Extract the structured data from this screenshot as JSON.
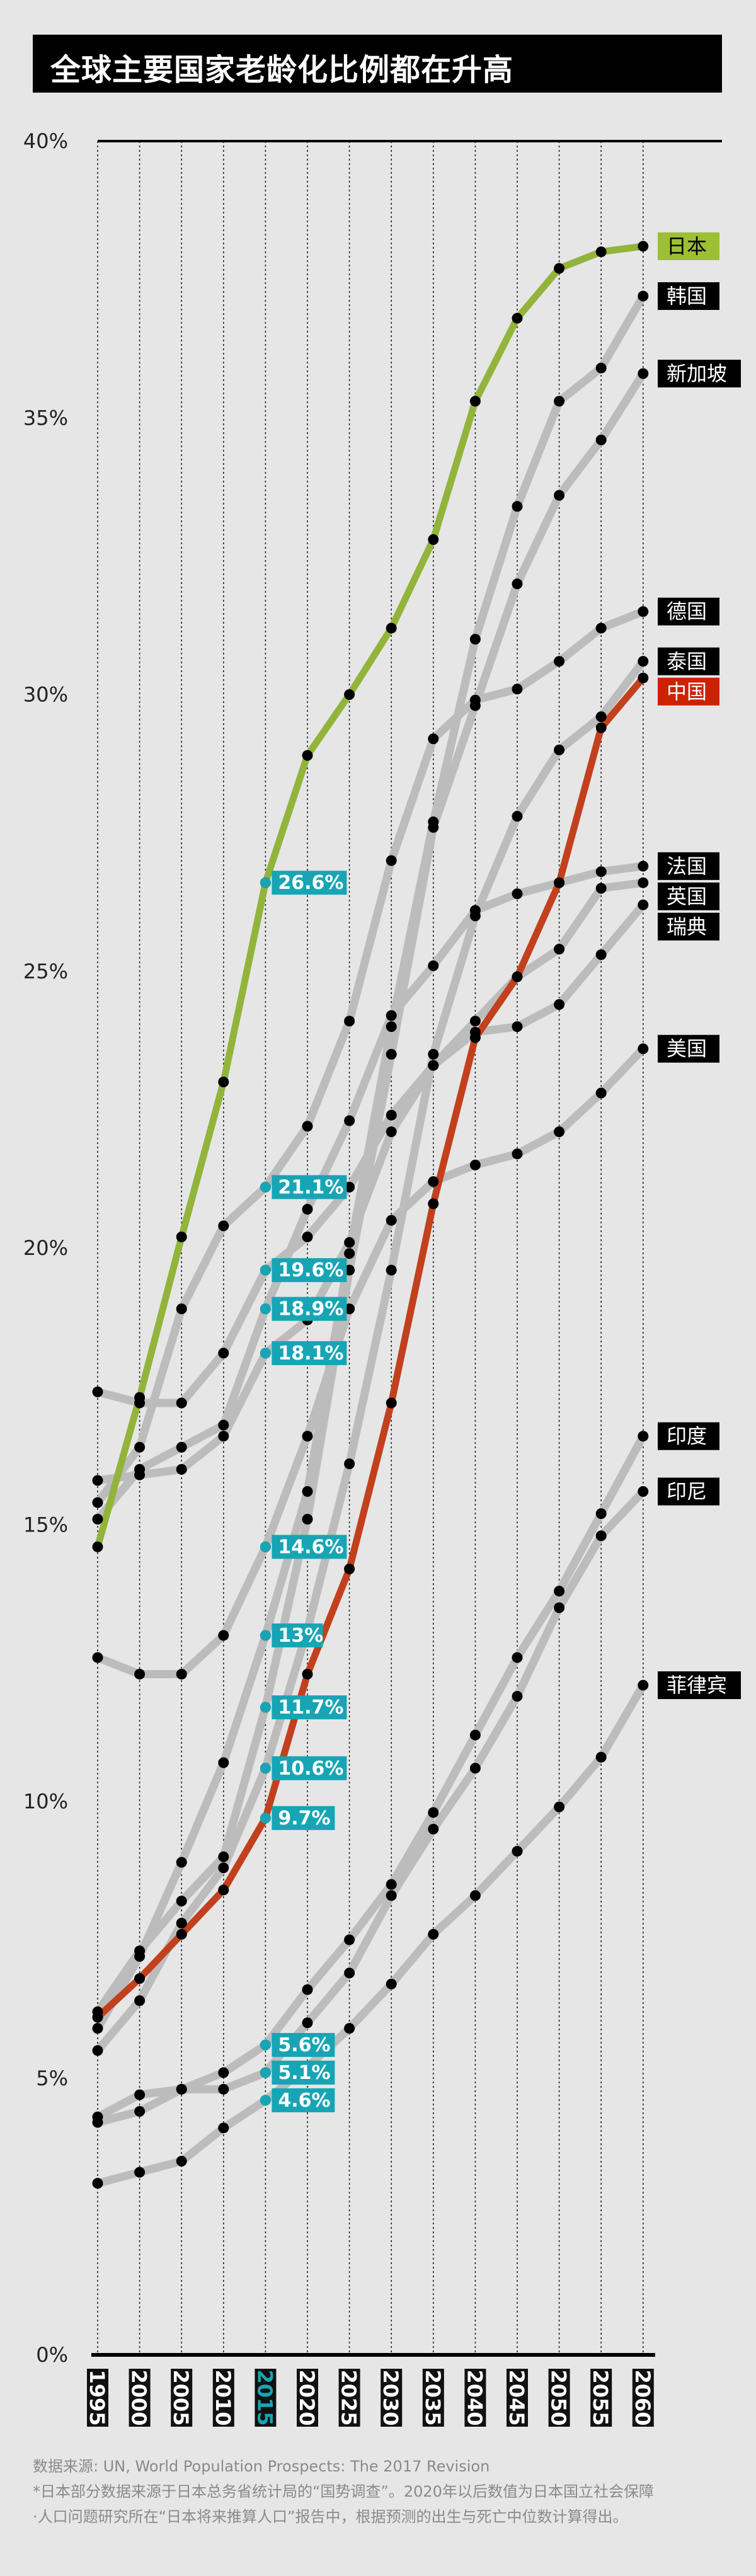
{
  "title": "全球主要国家老龄化比例都在升高",
  "footer": {
    "source": "数据来源: UN, World Population Prospects: The 2017 Revision",
    "note_line1": "*日本部分数据来源于日本总务省统计局的“国势调查”。2020年以后数值为日本国立社会保障",
    "note_line2": "·人口问题研究所在“日本将来推算人口”报告中，根据预测的出生与死亡中位数计算得出。"
  },
  "colors": {
    "background": "#e6e6e6",
    "japan": "#93b43b",
    "china": "#c2401d",
    "others": "#bcbcbc",
    "highlight_2015": "#17a5b5",
    "china_label_bg": "#cc2200",
    "japan_label_bg": "#9cbf34"
  },
  "chart_data": {
    "type": "line",
    "title": "全球主要国家老龄化比例都在升高",
    "xlabel": "",
    "ylabel": "",
    "x": [
      "1995",
      "2000",
      "2005",
      "2010",
      "2015",
      "2020",
      "2025",
      "2030",
      "2035",
      "2040",
      "2045",
      "2050",
      "2055",
      "2060"
    ],
    "ylim": [
      0,
      40
    ],
    "yticks": [
      "0%",
      "5%",
      "10%",
      "15%",
      "20%",
      "25%",
      "30%",
      "35%",
      "40%"
    ],
    "grid": "vertical dotted lines at each year",
    "highlight_year": "2015",
    "highlight_labels": [
      "26.6%",
      "21.1%",
      "19.6%",
      "18.9%",
      "18.1%",
      "14.6%",
      "13%",
      "11.7%",
      "10.6%",
      "9.7%",
      "5.6%",
      "5.1%",
      "4.6%"
    ],
    "series": [
      {
        "name": "日本",
        "color": "#93b43b",
        "label_style": "japan",
        "values": [
          14.6,
          17.3,
          20.2,
          23.0,
          26.6,
          28.9,
          30.0,
          31.2,
          32.8,
          35.3,
          36.8,
          37.7,
          38.0,
          38.1
        ]
      },
      {
        "name": "韩国",
        "color": "#bcbcbc",
        "label_style": "default",
        "values": [
          5.9,
          7.2,
          8.9,
          10.7,
          13.0,
          15.6,
          19.9,
          24.0,
          27.7,
          31.0,
          33.4,
          35.3,
          35.9,
          37.2
        ]
      },
      {
        "name": "新加坡",
        "color": "#bcbcbc",
        "label_style": "default",
        "values": [
          6.2,
          7.3,
          8.2,
          9.0,
          11.7,
          15.1,
          19.6,
          23.5,
          27.6,
          29.8,
          32.0,
          33.6,
          34.6,
          35.8
        ]
      },
      {
        "name": "德国",
        "color": "#bcbcbc",
        "label_style": "default",
        "values": [
          15.4,
          16.4,
          18.9,
          20.4,
          21.1,
          22.2,
          24.1,
          27.0,
          29.2,
          29.9,
          30.1,
          30.6,
          31.2,
          31.5
        ]
      },
      {
        "name": "泰国",
        "color": "#bcbcbc",
        "label_style": "default",
        "values": [
          5.5,
          6.4,
          7.8,
          8.8,
          10.6,
          13.1,
          16.1,
          19.6,
          23.5,
          26.0,
          27.8,
          29.0,
          29.6,
          30.6
        ]
      },
      {
        "name": "中国",
        "color": "#c2401d",
        "label_style": "china",
        "values": [
          6.1,
          6.8,
          7.6,
          8.4,
          9.7,
          12.3,
          14.2,
          17.2,
          20.8,
          23.8,
          24.9,
          26.6,
          29.4,
          30.3
        ]
      },
      {
        "name": "法国",
        "color": "#bcbcbc",
        "label_style": "default",
        "values": [
          15.1,
          16.0,
          16.4,
          16.8,
          18.9,
          20.7,
          22.3,
          24.2,
          25.1,
          26.1,
          26.4,
          26.6,
          26.8,
          26.9
        ]
      },
      {
        "name": "英国",
        "color": "#bcbcbc",
        "label_style": "default",
        "values": [
          15.8,
          15.9,
          16.0,
          16.6,
          18.1,
          18.7,
          20.1,
          22.1,
          23.3,
          24.1,
          24.9,
          25.4,
          26.5,
          26.6
        ]
      },
      {
        "name": "瑞典",
        "color": "#bcbcbc",
        "label_style": "default",
        "values": [
          17.4,
          17.2,
          17.2,
          18.1,
          19.6,
          20.2,
          21.1,
          22.4,
          23.3,
          23.9,
          24.0,
          24.4,
          25.3,
          26.2
        ]
      },
      {
        "name": "美国",
        "color": "#bcbcbc",
        "label_style": "default",
        "values": [
          12.6,
          12.3,
          12.3,
          13.0,
          14.6,
          16.6,
          18.9,
          20.5,
          21.2,
          21.5,
          21.7,
          22.1,
          22.8,
          23.6
        ]
      },
      {
        "name": "印度",
        "color": "#bcbcbc",
        "label_style": "default",
        "values": [
          4.2,
          4.4,
          4.8,
          5.1,
          5.6,
          6.6,
          7.5,
          8.5,
          9.8,
          11.2,
          12.6,
          13.8,
          15.2,
          16.6
        ]
      },
      {
        "name": "印尼",
        "color": "#bcbcbc",
        "label_style": "default",
        "values": [
          4.3,
          4.7,
          4.8,
          4.8,
          5.1,
          6.0,
          6.9,
          8.3,
          9.5,
          10.6,
          11.9,
          13.5,
          14.8,
          15.6
        ]
      },
      {
        "name": "菲律宾",
        "color": "#bcbcbc",
        "label_style": "default",
        "values": [
          3.1,
          3.3,
          3.5,
          4.1,
          4.6,
          5.2,
          5.9,
          6.7,
          7.6,
          8.3,
          9.1,
          9.9,
          10.8,
          12.1
        ]
      }
    ]
  }
}
